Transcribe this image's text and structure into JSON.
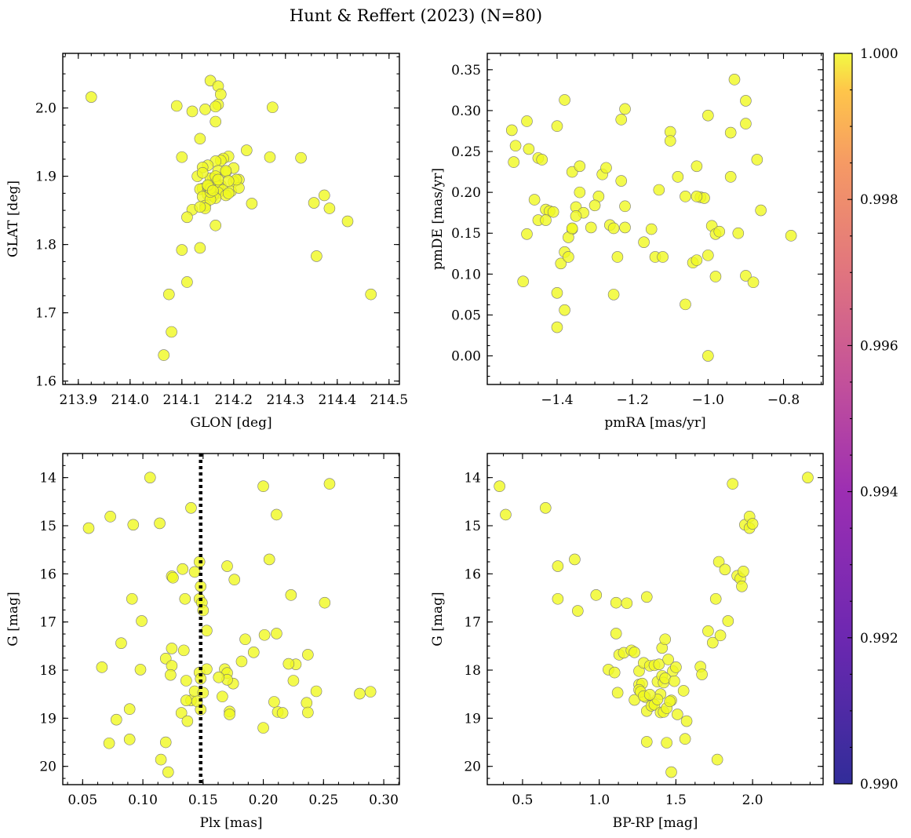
{
  "figure_title": "Hunt & Reffert (2023) (N=80)",
  "colorbar": {
    "min": 0.99,
    "max": 1.0,
    "ticks": [
      "0.990",
      "0.992",
      "0.994",
      "0.996",
      "0.998",
      "1.000"
    ],
    "colormap": "plasma",
    "point_color": "#f0f921"
  },
  "chart_data": [
    {
      "id": "glon_glat",
      "type": "scatter",
      "title": "",
      "xlabel": "GLON [deg]",
      "ylabel": "GLAT [deg]",
      "xlim": [
        213.87,
        214.52
      ],
      "ylim": [
        1.595,
        2.08
      ],
      "yinvert": false,
      "xticks": [
        213.9,
        214.0,
        214.1,
        214.2,
        214.3,
        214.4,
        214.5
      ],
      "xticklabels": [
        "213.9",
        "214.0",
        "214.1",
        "214.2",
        "214.3",
        "214.4",
        "214.5"
      ],
      "yticks": [
        1.6,
        1.7,
        1.8,
        1.9,
        2.0
      ],
      "yticklabels": [
        "1.6",
        "1.7",
        "1.8",
        "1.9",
        "2.0"
      ],
      "x": [
        213.925,
        214.155,
        214.17,
        214.175,
        214.09,
        214.145,
        214.17,
        214.165,
        214.12,
        214.275,
        214.165,
        214.135,
        214.1,
        214.225,
        214.27,
        214.33,
        214.19,
        214.2,
        214.18,
        214.175,
        214.165,
        214.17,
        214.15,
        214.14,
        214.13,
        214.21,
        214.2,
        214.185,
        214.16,
        214.175,
        214.155,
        214.165,
        214.17,
        214.155,
        214.18,
        214.14,
        214.195,
        214.135,
        214.16,
        214.15,
        214.17,
        214.185,
        214.21,
        214.16,
        214.16,
        214.15,
        214.375,
        214.14,
        214.165,
        214.145,
        214.19,
        214.155,
        214.235,
        214.355,
        214.145,
        214.12,
        214.385,
        214.135,
        214.11,
        214.42,
        214.165,
        214.135,
        214.1,
        214.36,
        214.11,
        214.075,
        214.465,
        214.08,
        214.065,
        214.15,
        214.185,
        214.205,
        214.155,
        214.165,
        214.14,
        214.17,
        214.155,
        214.19,
        214.15,
        214.16
      ],
      "y": [
        2.016,
        2.04,
        2.032,
        2.02,
        2.003,
        1.998,
        2.005,
        2.002,
        1.995,
        2.001,
        1.98,
        1.955,
        1.928,
        1.938,
        1.928,
        1.927,
        1.929,
        1.912,
        1.926,
        1.923,
        1.922,
        1.908,
        1.916,
        1.913,
        1.9,
        1.895,
        1.892,
        1.906,
        1.896,
        1.887,
        1.897,
        1.89,
        1.885,
        1.884,
        1.88,
        1.882,
        1.878,
        1.881,
        1.875,
        1.878,
        1.876,
        1.872,
        1.883,
        1.874,
        1.871,
        1.873,
        1.872,
        1.87,
        1.868,
        1.857,
        1.875,
        1.866,
        1.86,
        1.861,
        1.853,
        1.851,
        1.853,
        1.855,
        1.84,
        1.834,
        1.828,
        1.795,
        1.792,
        1.783,
        1.745,
        1.727,
        1.727,
        1.672,
        1.638,
        1.885,
        1.908,
        1.895,
        1.877,
        1.9,
        1.905,
        1.895,
        1.882,
        1.893,
        1.887,
        1.879
      ]
    },
    {
      "id": "pm",
      "type": "scatter",
      "title": "",
      "xlabel": "pmRA [mas/yr]",
      "ylabel": "pmDE [mas/yr]",
      "xlim": [
        -1.585,
        -0.695
      ],
      "ylim": [
        -0.035,
        0.37
      ],
      "yinvert": false,
      "xticks": [
        -1.4,
        -1.2,
        -1.0,
        -0.8
      ],
      "xticklabels": [
        "−1.4",
        "−1.2",
        "−1.0",
        "−0.8"
      ],
      "yticks": [
        0.0,
        0.05,
        0.1,
        0.15,
        0.2,
        0.25,
        0.3,
        0.35
      ],
      "yticklabels": [
        "0.00",
        "0.05",
        "0.10",
        "0.15",
        "0.20",
        "0.25",
        "0.30",
        "0.35"
      ],
      "x": [
        -1.52,
        -1.51,
        -1.515,
        -1.48,
        -1.475,
        -1.49,
        -1.4,
        -1.38,
        -1.36,
        -1.34,
        -1.31,
        -1.29,
        -1.26,
        -1.24,
        -1.23,
        -1.22,
        -1.36,
        -1.35,
        -1.33,
        -1.28,
        -1.27,
        -1.23,
        -1.22,
        -1.15,
        -1.1,
        -1.1,
        -1.08,
        -1.06,
        -1.03,
        -1.02,
        -1.01,
        -1.0,
        -0.99,
        -0.98,
        -0.94,
        -0.93,
        -0.9,
        -0.9,
        -0.87,
        -0.86,
        -0.78,
        -1.45,
        -1.44,
        -1.43,
        -1.46,
        -1.42,
        -1.41,
        -1.45,
        -1.43,
        -1.37,
        -1.36,
        -1.35,
        -1.34,
        -1.3,
        -1.25,
        -1.22,
        -1.17,
        -1.14,
        -1.12,
        -1.0,
        -0.97,
        -0.9,
        -0.88,
        -1.38,
        -1.39,
        -1.37,
        -1.25,
        -1.13,
        -1.04,
        -1.03,
        -1.0,
        -0.98,
        -1.48,
        -1.4,
        -1.38,
        -1.4,
        -1.06,
        -1.03,
        -0.94,
        -0.92
      ],
      "y": [
        0.276,
        0.257,
        0.237,
        0.287,
        0.253,
        0.091,
        0.281,
        0.313,
        0.225,
        0.2,
        0.157,
        0.195,
        0.16,
        0.121,
        0.289,
        0.302,
        0.155,
        0.182,
        0.175,
        0.222,
        0.23,
        0.214,
        0.183,
        0.155,
        0.274,
        0.263,
        0.219,
        0.195,
        0.232,
        0.194,
        0.193,
        0.294,
        0.159,
        0.149,
        0.273,
        0.338,
        0.284,
        0.312,
        0.24,
        0.178,
        0.147,
        0.242,
        0.24,
        0.179,
        0.191,
        0.177,
        0.176,
        0.166,
        0.166,
        0.145,
        0.156,
        0.171,
        0.232,
        0.184,
        0.075,
        0.157,
        0.139,
        0.121,
        0.121,
        0.123,
        0.152,
        0.098,
        0.09,
        0.127,
        0.113,
        0.121,
        0.156,
        0.203,
        0.114,
        0.117,
        0.0,
        0.097,
        0.149,
        0.077,
        0.056,
        0.035,
        0.063,
        0.195,
        0.219,
        0.15
      ]
    },
    {
      "id": "plx_g",
      "type": "scatter",
      "title": "",
      "xlabel": "Plx [mas]",
      "ylabel": "G [mag]",
      "xlim": [
        0.0335,
        0.313
      ],
      "ylim": [
        13.5,
        20.38
      ],
      "yinvert": true,
      "vline": {
        "x": 0.148,
        "style": "dotted"
      },
      "xticks": [
        0.05,
        0.1,
        0.15,
        0.2,
        0.25,
        0.3
      ],
      "xticklabels": [
        "0.05",
        "0.10",
        "0.15",
        "0.20",
        "0.25",
        "0.30"
      ],
      "yticks": [
        14,
        15,
        16,
        17,
        18,
        19,
        20
      ],
      "yticklabels": [
        "14",
        "15",
        "16",
        "17",
        "18",
        "19",
        "20"
      ],
      "x": [
        0.106,
        0.255,
        0.2,
        0.211,
        0.055,
        0.073,
        0.092,
        0.114,
        0.14,
        0.147,
        0.205,
        0.17,
        0.176,
        0.133,
        0.124,
        0.125,
        0.143,
        0.148,
        0.147,
        0.149,
        0.15,
        0.135,
        0.223,
        0.251,
        0.091,
        0.099,
        0.153,
        0.211,
        0.201,
        0.185,
        0.192,
        0.237,
        0.227,
        0.221,
        0.082,
        0.124,
        0.134,
        0.182,
        0.119,
        0.124,
        0.066,
        0.098,
        0.147,
        0.168,
        0.17,
        0.175,
        0.136,
        0.148,
        0.17,
        0.163,
        0.225,
        0.123,
        0.153,
        0.166,
        0.14,
        0.143,
        0.15,
        0.172,
        0.212,
        0.236,
        0.209,
        0.216,
        0.132,
        0.148,
        0.237,
        0.172,
        0.28,
        0.289,
        0.244,
        0.089,
        0.078,
        0.137,
        0.2,
        0.119,
        0.089,
        0.072,
        0.115,
        0.121,
        0.145,
        0.136
      ],
      "y": [
        14.0,
        14.13,
        14.18,
        14.77,
        15.05,
        14.81,
        14.98,
        14.95,
        14.63,
        15.75,
        15.7,
        15.84,
        16.12,
        15.9,
        16.05,
        16.08,
        15.96,
        16.26,
        16.52,
        16.6,
        16.76,
        16.52,
        16.44,
        16.6,
        16.52,
        16.98,
        17.18,
        17.24,
        17.27,
        17.36,
        17.63,
        17.68,
        17.88,
        17.87,
        17.44,
        17.55,
        17.59,
        17.82,
        17.76,
        17.91,
        17.94,
        17.99,
        18.05,
        17.98,
        18.06,
        18.28,
        18.22,
        18.18,
        18.2,
        18.15,
        18.22,
        18.1,
        17.98,
        18.55,
        18.63,
        18.44,
        18.47,
        18.86,
        18.87,
        18.68,
        18.66,
        18.89,
        18.89,
        18.82,
        18.88,
        18.92,
        18.49,
        18.45,
        18.44,
        18.81,
        19.03,
        19.06,
        19.2,
        19.5,
        19.44,
        19.52,
        19.86,
        20.12,
        18.65,
        18.63
      ]
    },
    {
      "id": "cmd",
      "type": "scatter",
      "title": "",
      "xlabel": "BP-RP [mag]",
      "ylabel": "G [mag]",
      "xlim": [
        0.27,
        2.46
      ],
      "ylim": [
        13.5,
        20.38
      ],
      "yinvert": true,
      "xticks": [
        0.5,
        1.0,
        1.5,
        2.0
      ],
      "xticklabels": [
        "0.5",
        "1.0",
        "1.5",
        "2.0"
      ],
      "yticks": [
        14,
        15,
        16,
        17,
        18,
        19,
        20
      ],
      "yticklabels": [
        "14",
        "15",
        "16",
        "17",
        "18",
        "19",
        "20"
      ],
      "x": [
        0.35,
        0.39,
        0.65,
        0.73,
        0.73,
        0.84,
        0.86,
        0.98,
        1.11,
        1.18,
        1.31,
        1.06,
        1.11,
        1.13,
        1.16,
        1.21,
        1.23,
        1.26,
        1.29,
        1.33,
        1.36,
        1.39,
        1.41,
        1.43,
        1.45,
        1.48,
        1.5,
        1.12,
        1.1,
        1.26,
        1.28,
        1.3,
        1.35,
        1.38,
        1.4,
        1.41,
        1.42,
        1.43,
        1.47,
        1.49,
        1.55,
        1.23,
        1.26,
        1.27,
        1.29,
        1.31,
        1.34,
        1.36,
        1.38,
        1.4,
        1.42,
        1.44,
        1.46,
        1.51,
        1.56,
        1.31,
        1.44,
        1.57,
        1.47,
        1.77,
        1.66,
        1.67,
        1.71,
        1.74,
        1.76,
        1.78,
        1.79,
        1.82,
        1.84,
        1.87,
        1.9,
        1.92,
        1.93,
        1.94,
        1.95,
        1.98,
        1.98,
        2.0,
        2.36,
        1.33
      ],
      "y": [
        14.18,
        14.77,
        14.63,
        15.84,
        16.52,
        15.7,
        16.77,
        16.44,
        16.6,
        16.61,
        16.48,
        17.99,
        17.24,
        17.68,
        17.64,
        17.59,
        17.63,
        18.02,
        17.85,
        17.91,
        17.9,
        17.88,
        17.54,
        17.36,
        17.78,
        18.02,
        17.94,
        18.47,
        18.05,
        18.3,
        18.28,
        18.56,
        18.69,
        18.24,
        18.5,
        18.12,
        18.26,
        18.17,
        18.63,
        18.23,
        18.43,
        18.62,
        18.41,
        18.45,
        18.54,
        18.85,
        18.74,
        18.72,
        18.61,
        18.88,
        18.87,
        18.79,
        18.65,
        18.92,
        19.43,
        19.49,
        19.51,
        19.06,
        20.12,
        19.86,
        17.93,
        18.09,
        17.19,
        17.43,
        16.52,
        15.75,
        17.28,
        15.91,
        16.98,
        14.13,
        16.04,
        16.1,
        16.26,
        15.95,
        14.98,
        15.05,
        14.81,
        14.96,
        14.0,
        18.51
      ]
    }
  ]
}
